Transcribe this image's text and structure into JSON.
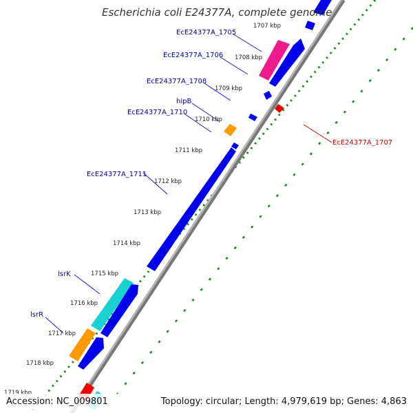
{
  "title": "Escherichia coli E24377A, complete genome",
  "footer": {
    "accession": "Accession: NC_009801",
    "summary": "Topology: circular; Length: 4,979,619 bp; Genes: 4,863"
  },
  "colors": {
    "blue_gene": "#0000ee",
    "pink_gene": "#ee1a8c",
    "orange_gene": "#ff9900",
    "cyan_gene": "#1ad1d1",
    "red_gene": "#ee0000",
    "backbone": "#999999",
    "dots_inner": "#1a8c1a",
    "dashes_outer": "#1a8c1a",
    "label_forward": "#00009c",
    "label_reverse": "#cc0000"
  },
  "ticks": [
    {
      "label": "1707 kbp"
    },
    {
      "label": "1708 kbp"
    },
    {
      "label": "1709 kbp"
    },
    {
      "label": "1710 kbp"
    },
    {
      "label": "1711 kbp"
    },
    {
      "label": "1712 kbp"
    },
    {
      "label": "1713 kbp"
    },
    {
      "label": "1714 kbp"
    },
    {
      "label": "1715 kbp"
    },
    {
      "label": "1716 kbp"
    },
    {
      "label": "1717 kbp"
    },
    {
      "label": "1718 kbp"
    },
    {
      "label": "1719 kbp"
    }
  ],
  "gene_labels": [
    {
      "id": "EcE24377A_1705",
      "text": "EcE24377A_1705",
      "strand": "forward"
    },
    {
      "id": "EcE24377A_1706",
      "text": "EcE24377A_1706",
      "strand": "forward"
    },
    {
      "id": "EcE24377A_1708",
      "text": "EcE24377A_1708",
      "strand": "forward"
    },
    {
      "id": "hipB",
      "text": "hipB",
      "strand": "forward"
    },
    {
      "id": "EcE24377A_1710",
      "text": "EcE24377A_1710",
      "strand": "forward"
    },
    {
      "id": "EcE24377A_1711",
      "text": "EcE24377A_1711",
      "strand": "forward"
    },
    {
      "id": "lsrK",
      "text": "lsrK",
      "strand": "forward"
    },
    {
      "id": "lsrR",
      "text": "lsrR",
      "strand": "forward"
    },
    {
      "id": "EcE24377A_1707",
      "text": "EcE24377A_1707",
      "strand": "reverse"
    }
  ]
}
